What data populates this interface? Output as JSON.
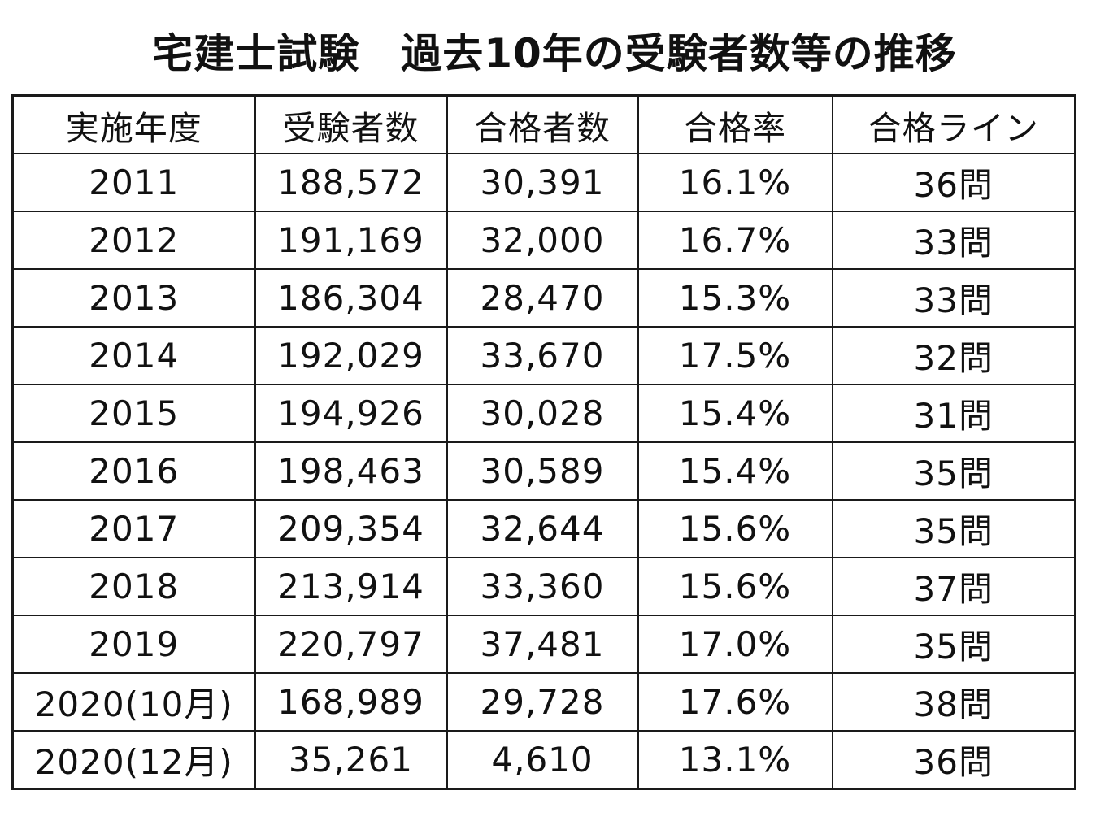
{
  "title": "宅建士試験　過去10年の受験者数等の推移",
  "chart_data": {
    "type": "table",
    "title": "宅建士試験　過去10年の受験者数等の推移",
    "columns": [
      "実施年度",
      "受験者数",
      "合格者数",
      "合格率",
      "合格ライン"
    ],
    "rows": [
      [
        "2011",
        "188,572",
        "30,391",
        "16.1%",
        "36問"
      ],
      [
        "2012",
        "191,169",
        "32,000",
        "16.7%",
        "33問"
      ],
      [
        "2013",
        "186,304",
        "28,470",
        "15.3%",
        "33問"
      ],
      [
        "2014",
        "192,029",
        "33,670",
        "17.5%",
        "32問"
      ],
      [
        "2015",
        "194,926",
        "30,028",
        "15.4%",
        "31問"
      ],
      [
        "2016",
        "198,463",
        "30,589",
        "15.4%",
        "35問"
      ],
      [
        "2017",
        "209,354",
        "32,644",
        "15.6%",
        "35問"
      ],
      [
        "2018",
        "213,914",
        "33,360",
        "15.6%",
        "37問"
      ],
      [
        "2019",
        "220,797",
        "37,481",
        "17.0%",
        "35問"
      ],
      [
        "2020(10月)",
        "168,989",
        "29,728",
        "17.6%",
        "38問"
      ],
      [
        "2020(12月)",
        "35,261",
        "4,610",
        "13.1%",
        "36問"
      ]
    ]
  }
}
